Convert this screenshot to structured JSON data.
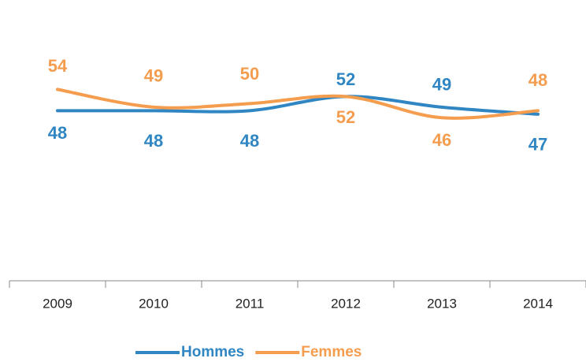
{
  "chart_data": {
    "type": "line",
    "categories": [
      "2009",
      "2010",
      "2011",
      "2012",
      "2013",
      "2014"
    ],
    "series": [
      {
        "name": "Hommes",
        "color": "#2f86c3",
        "values": [
          48,
          48,
          48,
          52,
          49,
          47
        ]
      },
      {
        "name": "Femmes",
        "color": "#f59d4f",
        "values": [
          54,
          49,
          50,
          52,
          46,
          48
        ]
      }
    ],
    "ylim": [
      0,
      75
    ],
    "legend": "bottom"
  }
}
